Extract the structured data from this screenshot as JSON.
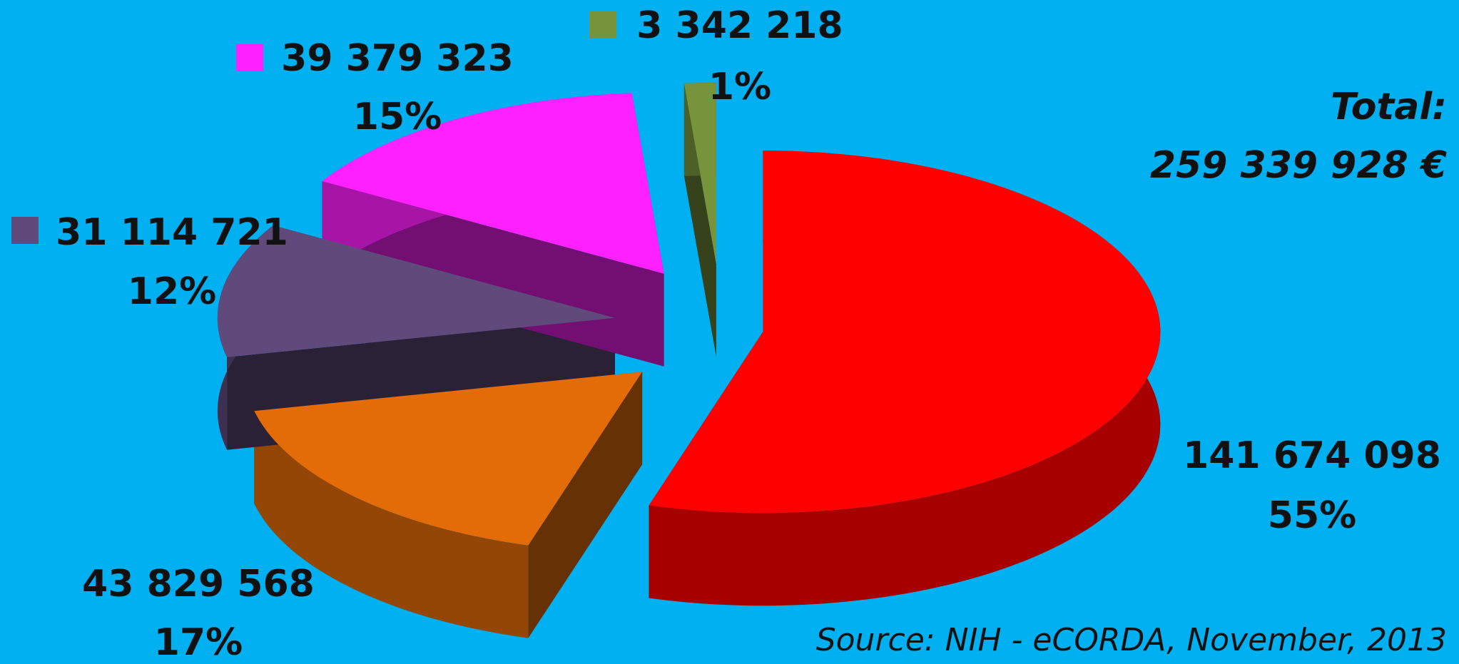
{
  "chart_data": {
    "type": "pie",
    "values": [
      141674098,
      43829568,
      31114721,
      39379323,
      3342218
    ],
    "value_labels": [
      "141 674 098",
      "43 829 568",
      "31 114 721",
      "39 379 323",
      "3 342 218"
    ],
    "percent_labels": [
      "55%",
      "17%",
      "12%",
      "15%",
      "1%"
    ],
    "colors": [
      "#ff0000",
      "#e36c09",
      "#604a7b",
      "#ff20ff",
      "#77933c"
    ],
    "annotations": [
      "Total:",
      "259 339 928 €"
    ],
    "source": "Source: NIH - eCORDA, November, 2013"
  }
}
